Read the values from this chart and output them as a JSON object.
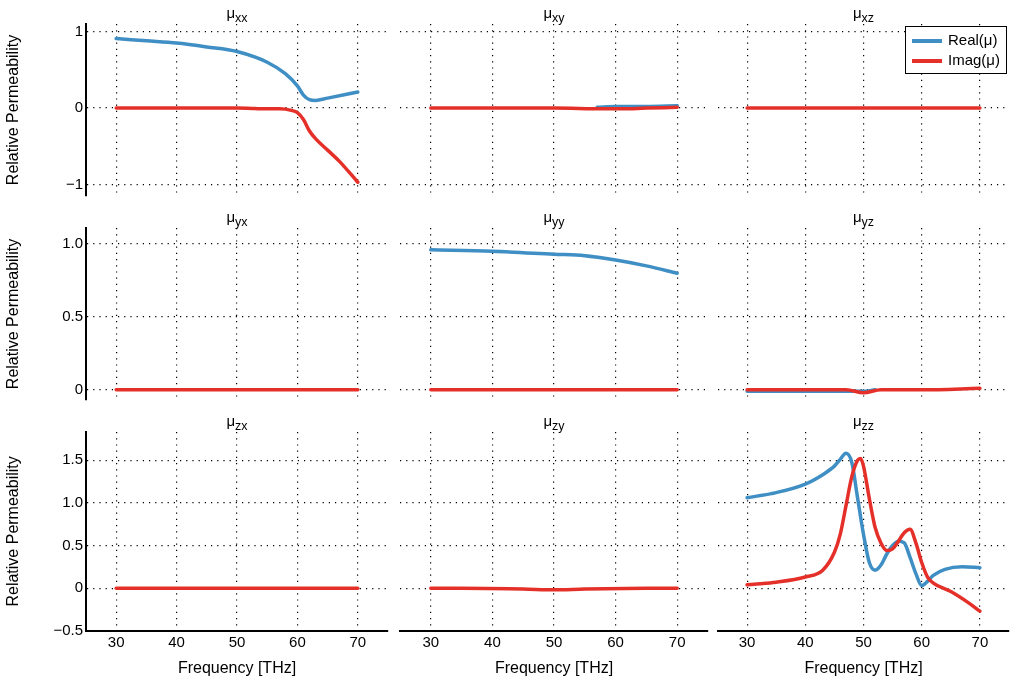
{
  "chart_data": [
    {
      "type": "line",
      "title": "μ$_{xx}$",
      "ylabel": "Relative Permeability",
      "xlim": [
        25,
        75
      ],
      "xticks": [
        30,
        40,
        50,
        60,
        70
      ],
      "ylim": [
        -1.15,
        1.1
      ],
      "yticks": [
        {
          "value": -1,
          "label": "−1"
        },
        0,
        1
      ],
      "grid": true,
      "tick_labels": "y",
      "line_style": "solid",
      "marker": "none",
      "series": [
        {
          "color": "#3f8fc5",
          "x": [
            30,
            35,
            40,
            45,
            50,
            55,
            58,
            60,
            61,
            62,
            63,
            65,
            70
          ],
          "values": [
            0.91,
            0.88,
            0.85,
            0.8,
            0.74,
            0.6,
            0.45,
            0.29,
            0.17,
            0.11,
            0.1,
            0.13,
            0.21
          ]
        },
        {
          "color": "#e5302a",
          "x": [
            30,
            40,
            50,
            55,
            57,
            59,
            60,
            61,
            62,
            63,
            65,
            67,
            70
          ],
          "values": [
            0,
            0,
            0,
            -0.01,
            -0.01,
            -0.03,
            -0.06,
            -0.15,
            -0.3,
            -0.4,
            -0.55,
            -0.7,
            -0.97
          ]
        }
      ]
    },
    {
      "type": "line",
      "title": "μ$_{xy}$",
      "xlim": [
        25,
        75
      ],
      "xticks": [
        30,
        40,
        50,
        60,
        70
      ],
      "ylim": [
        -1.15,
        1.1
      ],
      "yticks": [
        -1,
        0,
        1
      ],
      "grid": true,
      "tick_labels": false,
      "line_style": "solid",
      "marker": "none",
      "series": [
        {
          "color": "#3f8fc5",
          "x": [
            57,
            60,
            65,
            70
          ],
          "values": [
            0.01,
            0.02,
            0.02,
            0.03
          ]
        },
        {
          "color": "#e5302a",
          "x": [
            30,
            50,
            58,
            61,
            65,
            70
          ],
          "values": [
            0,
            0,
            -0.01,
            -0.01,
            0,
            0.01
          ]
        }
      ]
    },
    {
      "type": "line",
      "title": "μ$_{xz}$",
      "xlim": [
        25,
        75
      ],
      "xticks": [
        30,
        40,
        50,
        60,
        70
      ],
      "ylim": [
        -1.15,
        1.1
      ],
      "yticks": [
        -1,
        0,
        1
      ],
      "grid": true,
      "tick_labels": false,
      "line_style": "solid",
      "marker": "none",
      "legend": "top right",
      "series": [
        {
          "name": "Real(μ)",
          "color": "#3f8fc5"
        },
        {
          "name": "Imag(μ)",
          "color": "#e5302a",
          "x": [
            30,
            70
          ],
          "values": [
            0,
            0
          ]
        }
      ]
    },
    {
      "type": "line",
      "title": "μ$_{yx}$",
      "ylabel": "Relative Permeability",
      "xlim": [
        25,
        75
      ],
      "xticks": [
        30,
        40,
        50,
        60,
        70
      ],
      "ylim": [
        -0.07,
        1.11
      ],
      "yticks": [
        0,
        0.5,
        {
          "value": 1,
          "label": "1.0"
        }
      ],
      "grid": true,
      "tick_labels": "y",
      "line_style": "solid",
      "marker": "none",
      "series": [
        {
          "color": "#e5302a",
          "x": [
            30,
            70
          ],
          "values": [
            0,
            0
          ]
        }
      ]
    },
    {
      "type": "line",
      "title": "μ$_{yy}$",
      "xlim": [
        25,
        75
      ],
      "xticks": [
        30,
        40,
        50,
        60,
        70
      ],
      "ylim": [
        -0.07,
        1.11
      ],
      "yticks": [
        0,
        0.5,
        1
      ],
      "grid": true,
      "tick_labels": false,
      "line_style": "solid",
      "marker": "none",
      "series": [
        {
          "color": "#3f8fc5",
          "x": [
            30,
            40,
            50,
            55,
            60,
            65,
            70
          ],
          "values": [
            0.96,
            0.95,
            0.93,
            0.92,
            0.89,
            0.85,
            0.8
          ]
        },
        {
          "color": "#e5302a",
          "x": [
            30,
            50,
            70
          ],
          "values": [
            0,
            0,
            0
          ]
        }
      ]
    },
    {
      "type": "line",
      "title": "μ$_{yz}$",
      "xlim": [
        25,
        75
      ],
      "xticks": [
        30,
        40,
        50,
        60,
        70
      ],
      "ylim": [
        -0.07,
        1.11
      ],
      "yticks": [
        0,
        0.5,
        1
      ],
      "grid": true,
      "tick_labels": false,
      "line_style": "solid",
      "marker": "none",
      "series": [
        {
          "color": "#3f8fc5",
          "x": [
            30,
            46,
            50,
            52
          ],
          "values": [
            -0.01,
            -0.01,
            -0.01,
            0
          ]
        },
        {
          "color": "#e5302a",
          "x": [
            30,
            47,
            50,
            53,
            60,
            70
          ],
          "values": [
            0,
            0,
            -0.02,
            0,
            0,
            0.01
          ]
        }
      ]
    },
    {
      "type": "line",
      "title": "μ$_{zx}$",
      "ylabel": "Relative Permeability",
      "xlabel": "Frequency [THz]",
      "xlim": [
        25,
        75
      ],
      "xticks": [
        30,
        40,
        50,
        60,
        70
      ],
      "ylim": [
        -0.5,
        1.83
      ],
      "yticks": [
        {
          "value": -0.5,
          "label": "−0.5"
        },
        0,
        0.5,
        {
          "value": 1,
          "label": "1.0"
        },
        1.5
      ],
      "grid": true,
      "line_style": "solid",
      "marker": "none",
      "series": [
        {
          "color": "#e5302a",
          "x": [
            30,
            70
          ],
          "values": [
            0,
            0
          ]
        }
      ]
    },
    {
      "type": "line",
      "title": "μ$_{zy}$",
      "xlabel": "Frequency [THz]",
      "xlim": [
        25,
        75
      ],
      "xticks": [
        30,
        40,
        50,
        60,
        70
      ],
      "ylim": [
        -0.5,
        1.83
      ],
      "yticks": [
        -0.5,
        0,
        0.5,
        1,
        1.5
      ],
      "grid": true,
      "tick_labels": "x",
      "line_style": "solid",
      "marker": "none",
      "series": [
        {
          "color": "#e5302a",
          "x": [
            30,
            45,
            50,
            55,
            70
          ],
          "values": [
            0,
            -0.01,
            -0.02,
            -0.01,
            0
          ]
        }
      ]
    },
    {
      "type": "line",
      "title": "μ$_{zz}$",
      "xlabel": "Frequency [THz]",
      "xlim": [
        25,
        75
      ],
      "xticks": [
        30,
        40,
        50,
        60,
        70
      ],
      "ylim": [
        -0.5,
        1.83
      ],
      "yticks": [
        -0.5,
        0,
        0.5,
        1,
        1.5
      ],
      "grid": true,
      "tick_labels": "x",
      "line_style": "solid",
      "marker": "none",
      "series": [
        {
          "color": "#3f8fc5",
          "x": [
            30,
            35,
            40,
            43,
            45,
            46,
            47,
            48,
            49,
            50,
            51,
            52,
            53,
            54,
            55,
            56,
            57,
            58,
            59,
            60,
            61,
            62,
            64,
            67,
            70
          ],
          "values": [
            1.06,
            1.12,
            1.22,
            1.33,
            1.43,
            1.51,
            1.58,
            1.47,
            1.05,
            0.63,
            0.3,
            0.21,
            0.27,
            0.4,
            0.5,
            0.55,
            0.53,
            0.36,
            0.17,
            0.03,
            0.08,
            0.15,
            0.22,
            0.25,
            0.24
          ]
        },
        {
          "color": "#e5302a",
          "x": [
            30,
            35,
            40,
            43,
            45,
            46,
            47,
            48,
            49,
            49.5,
            50,
            51,
            52,
            53,
            54,
            55,
            56,
            57,
            58,
            59,
            60,
            61,
            62,
            65,
            68,
            70
          ],
          "values": [
            0.04,
            0.07,
            0.13,
            0.21,
            0.42,
            0.63,
            0.97,
            1.31,
            1.5,
            1.52,
            1.43,
            1.05,
            0.71,
            0.53,
            0.44,
            0.46,
            0.55,
            0.65,
            0.69,
            0.53,
            0.3,
            0.13,
            0.06,
            -0.04,
            -0.17,
            -0.27
          ]
        }
      ]
    }
  ]
}
